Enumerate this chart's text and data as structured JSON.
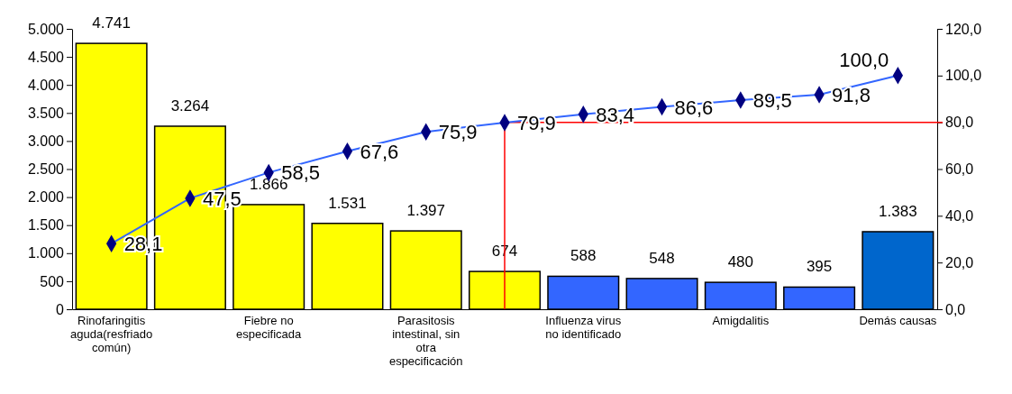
{
  "chart_data": {
    "type": "bar",
    "categories": [
      "Rinofaringitis aguda(resfriado común)",
      null,
      "Fiebre no especificada",
      null,
      "Parasitosis intestinal, sin otra especificación",
      null,
      "Influenza virus no identificado",
      null,
      "Amigdalitis",
      null,
      "Demás causas"
    ],
    "series": [
      {
        "colors": [
          "#ffff00",
          "#ffff00",
          "#ffff00",
          "#ffff00",
          "#ffff00",
          "#ffff00",
          "#3366ff",
          "#3366ff",
          "#3366ff",
          "#3366ff",
          "#0066cc"
        ],
        "values": [
          4741,
          3264,
          1866,
          1531,
          1397,
          674,
          588,
          548,
          480,
          395,
          1383
        ],
        "value_labels": [
          "4.741",
          "3.264",
          "1.866",
          "1.531",
          "1.397",
          "674",
          "588",
          "548",
          "480",
          "395",
          "1.383"
        ]
      },
      {
        "type": "line",
        "axis": "y2",
        "color": "#3366ff",
        "marker": "diamond",
        "values": [
          28.1,
          47.5,
          58.5,
          67.6,
          75.9,
          79.9,
          83.4,
          86.6,
          89.5,
          91.8,
          100.0
        ],
        "value_labels": [
          "28,1",
          "47,5",
          "58,5",
          "67,6",
          "75,9",
          "79,9",
          "83,4",
          "86,6",
          "89,5",
          "91,8",
          "100,0"
        ]
      }
    ],
    "ylim": [
      0,
      5000
    ],
    "yticks": [
      {
        "value": 0,
        "label": "0"
      },
      {
        "value": 500,
        "label": "500"
      },
      {
        "value": 1000,
        "label": "1.000"
      },
      {
        "value": 1500,
        "label": "1.500"
      },
      {
        "value": 2000,
        "label": "2.000"
      },
      {
        "value": 2500,
        "label": "2.500"
      },
      {
        "value": 3000,
        "label": "3.000"
      },
      {
        "value": 3500,
        "label": "3.500"
      },
      {
        "value": 4000,
        "label": "4.000"
      },
      {
        "value": 4500,
        "label": "4.500"
      },
      {
        "value": 5000,
        "label": "5.000"
      }
    ],
    "y2lim": [
      0,
      120
    ],
    "y2ticks": [
      {
        "value": 0,
        "label": "0,0"
      },
      {
        "value": 20,
        "label": "20,0"
      },
      {
        "value": 40,
        "label": "40,0"
      },
      {
        "value": 60,
        "label": "60,0"
      },
      {
        "value": 80,
        "label": "80,0"
      },
      {
        "value": 100,
        "label": "100,0"
      },
      {
        "value": 120,
        "label": "120,0"
      }
    ],
    "ref_lines": [
      {
        "axis": "y2",
        "value": 80,
        "color": "#ff0000"
      }
    ]
  }
}
